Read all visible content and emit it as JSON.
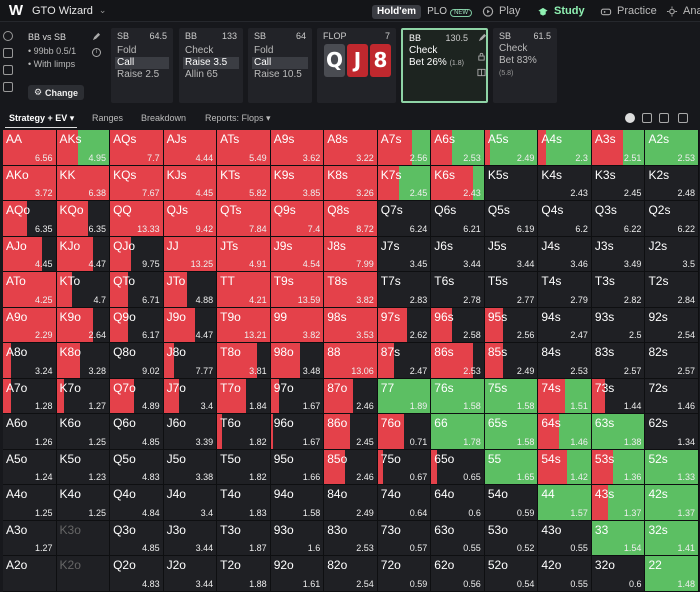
{
  "app": {
    "brand": "GTO Wizard",
    "logo": "W"
  },
  "game": {
    "holdem": "Hold'em",
    "plo": "PLO",
    "new_badge": "NEW"
  },
  "nav": [
    {
      "label": "Play",
      "icon": "play-icon",
      "active": false
    },
    {
      "label": "Study",
      "icon": "study-icon",
      "active": true
    },
    {
      "label": "Practice",
      "icon": "gamepad-icon",
      "active": false
    },
    {
      "label": "Ana",
      "icon": "sun-icon",
      "active": false
    }
  ],
  "left": {
    "title": "BB vs SB",
    "stack": "• 99bb 0.5/1",
    "limps": "• With limps",
    "change": "Change"
  },
  "panels": [
    {
      "pos": "SB",
      "amt": "64.5",
      "rows": [
        "Fold",
        "Call",
        "Raise 2.5"
      ],
      "sel": 1
    },
    {
      "pos": "BB",
      "amt": "133",
      "rows": [
        "Check",
        "Raise 3.5",
        "Allin 65"
      ],
      "sel": 1
    },
    {
      "pos": "SB",
      "amt": "64",
      "rows": [
        "Fold",
        "Call",
        "Raise 10.5"
      ],
      "sel": 1
    },
    {
      "pos": "FLOP",
      "amt": "7",
      "cards": [
        "Q",
        "J",
        "8"
      ]
    },
    {
      "pos": "BB",
      "amt": "130.5",
      "rows": [
        "Check",
        "Bet 26%"
      ],
      "bet_ev": "(1.8)",
      "active": true
    },
    {
      "pos": "SB",
      "amt": "61.5",
      "rows": [
        "Check",
        "Bet 83%"
      ],
      "bet_ev": "(5.8)"
    }
  ],
  "toolbar": {
    "tabs": [
      "Strategy + EV",
      "Ranges",
      "Breakdown",
      "Reports: Flops"
    ]
  },
  "colors": {
    "red": "#e4414a",
    "green": "#5cbf63",
    "empty": "#1f2024"
  },
  "grid": {
    "hands": [
      [
        "AA",
        "AKs",
        "AQs",
        "AJs",
        "ATs",
        "A9s",
        "A8s",
        "A7s",
        "A6s",
        "A5s",
        "A4s",
        "A3s",
        "A2s"
      ],
      [
        "AKo",
        "KK",
        "KQs",
        "KJs",
        "KTs",
        "K9s",
        "K8s",
        "K7s",
        "K6s",
        "K5s",
        "K4s",
        "K3s",
        "K2s"
      ],
      [
        "AQo",
        "KQo",
        "QQ",
        "QJs",
        "QTs",
        "Q9s",
        "Q8s",
        "Q7s",
        "Q6s",
        "Q5s",
        "Q4s",
        "Q3s",
        "Q2s"
      ],
      [
        "AJo",
        "KJo",
        "QJo",
        "JJ",
        "JTs",
        "J9s",
        "J8s",
        "J7s",
        "J6s",
        "J5s",
        "J4s",
        "J3s",
        "J2s"
      ],
      [
        "ATo",
        "KTo",
        "QTo",
        "JTo",
        "TT",
        "T9s",
        "T8s",
        "T7s",
        "T6s",
        "T5s",
        "T4s",
        "T3s",
        "T2s"
      ],
      [
        "A9o",
        "K9o",
        "Q9o",
        "J9o",
        "T9o",
        "99",
        "98s",
        "97s",
        "96s",
        "95s",
        "94s",
        "93s",
        "92s"
      ],
      [
        "A8o",
        "K8o",
        "Q8o",
        "J8o",
        "T8o",
        "98o",
        "88",
        "87s",
        "86s",
        "85s",
        "84s",
        "83s",
        "82s"
      ],
      [
        "A7o",
        "K7o",
        "Q7o",
        "J7o",
        "T7o",
        "97o",
        "87o",
        "77",
        "76s",
        "75s",
        "74s",
        "73s",
        "72s"
      ],
      [
        "A6o",
        "K6o",
        "Q6o",
        "J6o",
        "T6o",
        "96o",
        "86o",
        "76o",
        "66",
        "65s",
        "64s",
        "63s",
        "62s"
      ],
      [
        "A5o",
        "K5o",
        "Q5o",
        "J5o",
        "T5o",
        "95o",
        "85o",
        "75o",
        "65o",
        "55",
        "54s",
        "53s",
        "52s"
      ],
      [
        "A4o",
        "K4o",
        "Q4o",
        "J4o",
        "T4o",
        "94o",
        "84o",
        "74o",
        "64o",
        "54o",
        "44",
        "43s",
        "42s"
      ],
      [
        "A3o",
        "K3o",
        "Q3o",
        "J3o",
        "T3o",
        "93o",
        "83o",
        "73o",
        "63o",
        "53o",
        "43o",
        "33",
        "32s"
      ],
      [
        "A2o",
        "K2o",
        "Q2o",
        "J2o",
        "T2o",
        "92o",
        "82o",
        "72o",
        "62o",
        "52o",
        "42o",
        "32o",
        "22"
      ]
    ],
    "ev": [
      [
        "6.56",
        "4.95",
        "7.7",
        "4.44",
        "5.49",
        "3.62",
        "3.22",
        "2.56",
        "2.53",
        "2.49",
        "2.3",
        "2.51",
        "2.53"
      ],
      [
        "3.72",
        "6.38",
        "7.67",
        "4.45",
        "5.82",
        "3.85",
        "3.26",
        "2.45",
        "2.43",
        "",
        "2.43",
        "2.45",
        "2.48"
      ],
      [
        "6.35",
        "6.35",
        "13.33",
        "9.42",
        "7.84",
        "7.4",
        "8.72",
        "6.24",
        "6.21",
        "6.19",
        "6.2",
        "6.22",
        "6.22"
      ],
      [
        "4.45",
        "4.47",
        "9.75",
        "13.25",
        "4.91",
        "4.54",
        "7.99",
        "3.45",
        "3.44",
        "3.44",
        "3.46",
        "3.49",
        "3.5"
      ],
      [
        "4.25",
        "4.7",
        "6.71",
        "4.88",
        "4.21",
        "13.59",
        "3.82",
        "2.83",
        "2.78",
        "2.77",
        "2.79",
        "2.82",
        "2.84"
      ],
      [
        "2.29",
        "2.64",
        "6.17",
        "4.47",
        "13.21",
        "3.82",
        "3.53",
        "2.62",
        "2.58",
        "2.56",
        "2.47",
        "2.5",
        "2.54"
      ],
      [
        "3.24",
        "3.28",
        "9.02",
        "7.77",
        "3.81",
        "3.48",
        "13.06",
        "2.47",
        "2.53",
        "2.49",
        "2.53",
        "2.57",
        "2.57"
      ],
      [
        "1.28",
        "1.27",
        "4.89",
        "3.4",
        "1.84",
        "1.67",
        "2.46",
        "1.89",
        "1.58",
        "1.58",
        "1.51",
        "1.44",
        "1.46"
      ],
      [
        "1.26",
        "1.25",
        "4.85",
        "3.39",
        "1.82",
        "1.67",
        "2.45",
        "0.71",
        "1.78",
        "1.58",
        "1.46",
        "1.38",
        "1.34"
      ],
      [
        "1.24",
        "1.23",
        "4.83",
        "3.38",
        "1.82",
        "1.66",
        "2.46",
        "0.67",
        "0.65",
        "1.65",
        "1.42",
        "1.36",
        "1.33"
      ],
      [
        "1.25",
        "1.25",
        "4.84",
        "3.4",
        "1.83",
        "1.58",
        "2.49",
        "0.64",
        "0.6",
        "0.59",
        "1.57",
        "1.37",
        "1.37"
      ],
      [
        "1.27",
        "",
        "4.85",
        "3.44",
        "1.87",
        "1.6",
        "2.53",
        "0.57",
        "0.55",
        "0.52",
        "0.55",
        "1.54",
        "1.41"
      ],
      [
        "",
        "",
        "4.83",
        "3.44",
        "1.88",
        "1.61",
        "2.54",
        "0.59",
        "0.56",
        "0.54",
        "0.55",
        "0.6",
        "1.48"
      ]
    ],
    "red_pct": [
      [
        100,
        40,
        100,
        100,
        100,
        100,
        100,
        65,
        40,
        10,
        15,
        60,
        0
      ],
      [
        100,
        100,
        100,
        100,
        100,
        100,
        100,
        40,
        80,
        0,
        0,
        0,
        0
      ],
      [
        45,
        60,
        100,
        100,
        100,
        100,
        100,
        0,
        0,
        0,
        0,
        0,
        0
      ],
      [
        75,
        70,
        40,
        100,
        100,
        100,
        100,
        0,
        0,
        0,
        0,
        0,
        0
      ],
      [
        100,
        30,
        35,
        45,
        100,
        100,
        100,
        0,
        0,
        0,
        0,
        0,
        0
      ],
      [
        100,
        70,
        35,
        60,
        100,
        100,
        100,
        55,
        40,
        35,
        0,
        0,
        0
      ],
      [
        15,
        45,
        0,
        20,
        75,
        55,
        100,
        30,
        80,
        35,
        0,
        0,
        0
      ],
      [
        15,
        15,
        45,
        30,
        55,
        15,
        55,
        0,
        0,
        0,
        50,
        25,
        0
      ],
      [
        0,
        0,
        0,
        0,
        10,
        5,
        50,
        50,
        0,
        0,
        40,
        0,
        0
      ],
      [
        0,
        0,
        0,
        0,
        0,
        0,
        40,
        10,
        10,
        0,
        55,
        40,
        0
      ],
      [
        0,
        0,
        0,
        0,
        0,
        0,
        0,
        0,
        0,
        0,
        0,
        30,
        0
      ],
      [
        0,
        0,
        0,
        0,
        0,
        0,
        0,
        0,
        0,
        0,
        0,
        0,
        0
      ],
      [
        0,
        0,
        0,
        0,
        0,
        0,
        0,
        0,
        0,
        0,
        0,
        0,
        0
      ]
    ],
    "green_pct": [
      [
        0,
        60,
        0,
        0,
        0,
        0,
        0,
        35,
        60,
        90,
        85,
        40,
        100
      ],
      [
        0,
        0,
        0,
        0,
        0,
        0,
        0,
        60,
        20,
        0,
        0,
        0,
        0
      ],
      [
        0,
        0,
        0,
        0,
        0,
        0,
        0,
        0,
        0,
        0,
        0,
        0,
        0
      ],
      [
        0,
        0,
        0,
        0,
        0,
        0,
        0,
        0,
        0,
        0,
        0,
        0,
        0
      ],
      [
        0,
        0,
        0,
        0,
        0,
        0,
        0,
        0,
        0,
        0,
        0,
        0,
        0
      ],
      [
        0,
        0,
        0,
        0,
        0,
        0,
        0,
        0,
        0,
        0,
        0,
        0,
        0
      ],
      [
        0,
        0,
        0,
        0,
        0,
        0,
        0,
        0,
        0,
        0,
        0,
        0,
        0
      ],
      [
        0,
        0,
        0,
        0,
        0,
        0,
        0,
        100,
        100,
        100,
        50,
        0,
        0
      ],
      [
        0,
        0,
        0,
        0,
        0,
        0,
        0,
        0,
        100,
        100,
        60,
        100,
        0
      ],
      [
        0,
        0,
        0,
        0,
        0,
        0,
        0,
        0,
        0,
        100,
        45,
        60,
        100
      ],
      [
        0,
        0,
        0,
        0,
        0,
        0,
        0,
        0,
        0,
        0,
        100,
        70,
        100
      ],
      [
        0,
        0,
        0,
        0,
        0,
        0,
        0,
        0,
        0,
        0,
        0,
        100,
        100
      ],
      [
        0,
        0,
        0,
        0,
        0,
        0,
        0,
        0,
        0,
        0,
        0,
        0,
        100
      ]
    ]
  }
}
